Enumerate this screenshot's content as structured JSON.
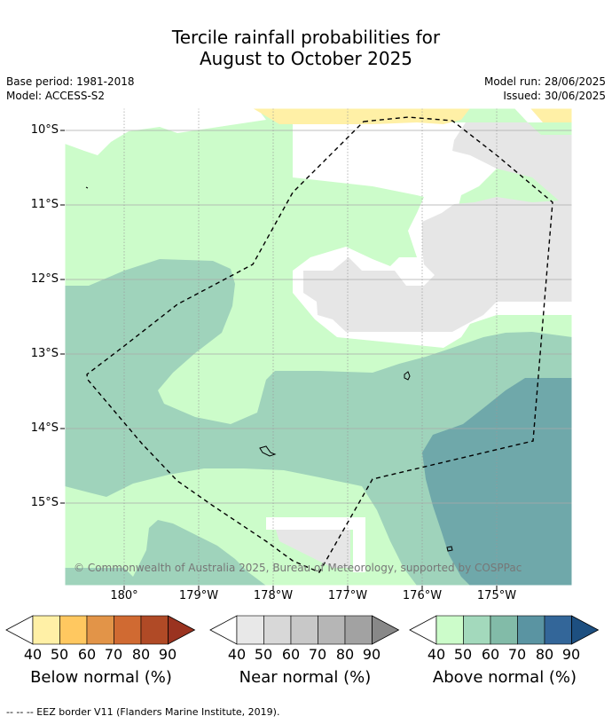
{
  "title_line1": "Tercile rainfall probabilities for",
  "title_line2": "August to October 2025",
  "meta": {
    "base_period": "Base period: 1981-2018",
    "model": "Model: ACCESS-S2",
    "model_run": "Model run: 28/06/2025",
    "issued": "Issued: 30/06/2025"
  },
  "axes": {
    "lat_labels": [
      "10°S",
      "11°S",
      "12°S",
      "13°S",
      "14°S",
      "15°S"
    ],
    "lon_labels": [
      "180°",
      "179°W",
      "178°W",
      "177°W",
      "176°W",
      "175°W"
    ]
  },
  "copyright": "© Commonwealth of Australia 2025, Bureau of Meteorology, supported by COSPPac",
  "legend": {
    "ticks": [
      "40",
      "50",
      "60",
      "70",
      "80",
      "90"
    ],
    "below": {
      "label": "Below normal (%)",
      "colors": [
        "#fff0a6",
        "#ffc860",
        "#e29448",
        "#d06a32",
        "#b04a26",
        "#9a3320"
      ]
    },
    "near": {
      "label": "Near normal (%)",
      "colors": [
        "#e8e8e8",
        "#d8d8d8",
        "#c8c8c8",
        "#b6b6b6",
        "#a2a2a2",
        "#888888"
      ]
    },
    "above": {
      "label": "Above normal (%)",
      "colors": [
        "#ccfcca",
        "#a3d9bc",
        "#82bba8",
        "#5a94a2",
        "#336699",
        "#1d4f80"
      ]
    }
  },
  "footnote": "--  --  -- EEZ border V11 (Flanders Marine Institute, 2019)."
}
